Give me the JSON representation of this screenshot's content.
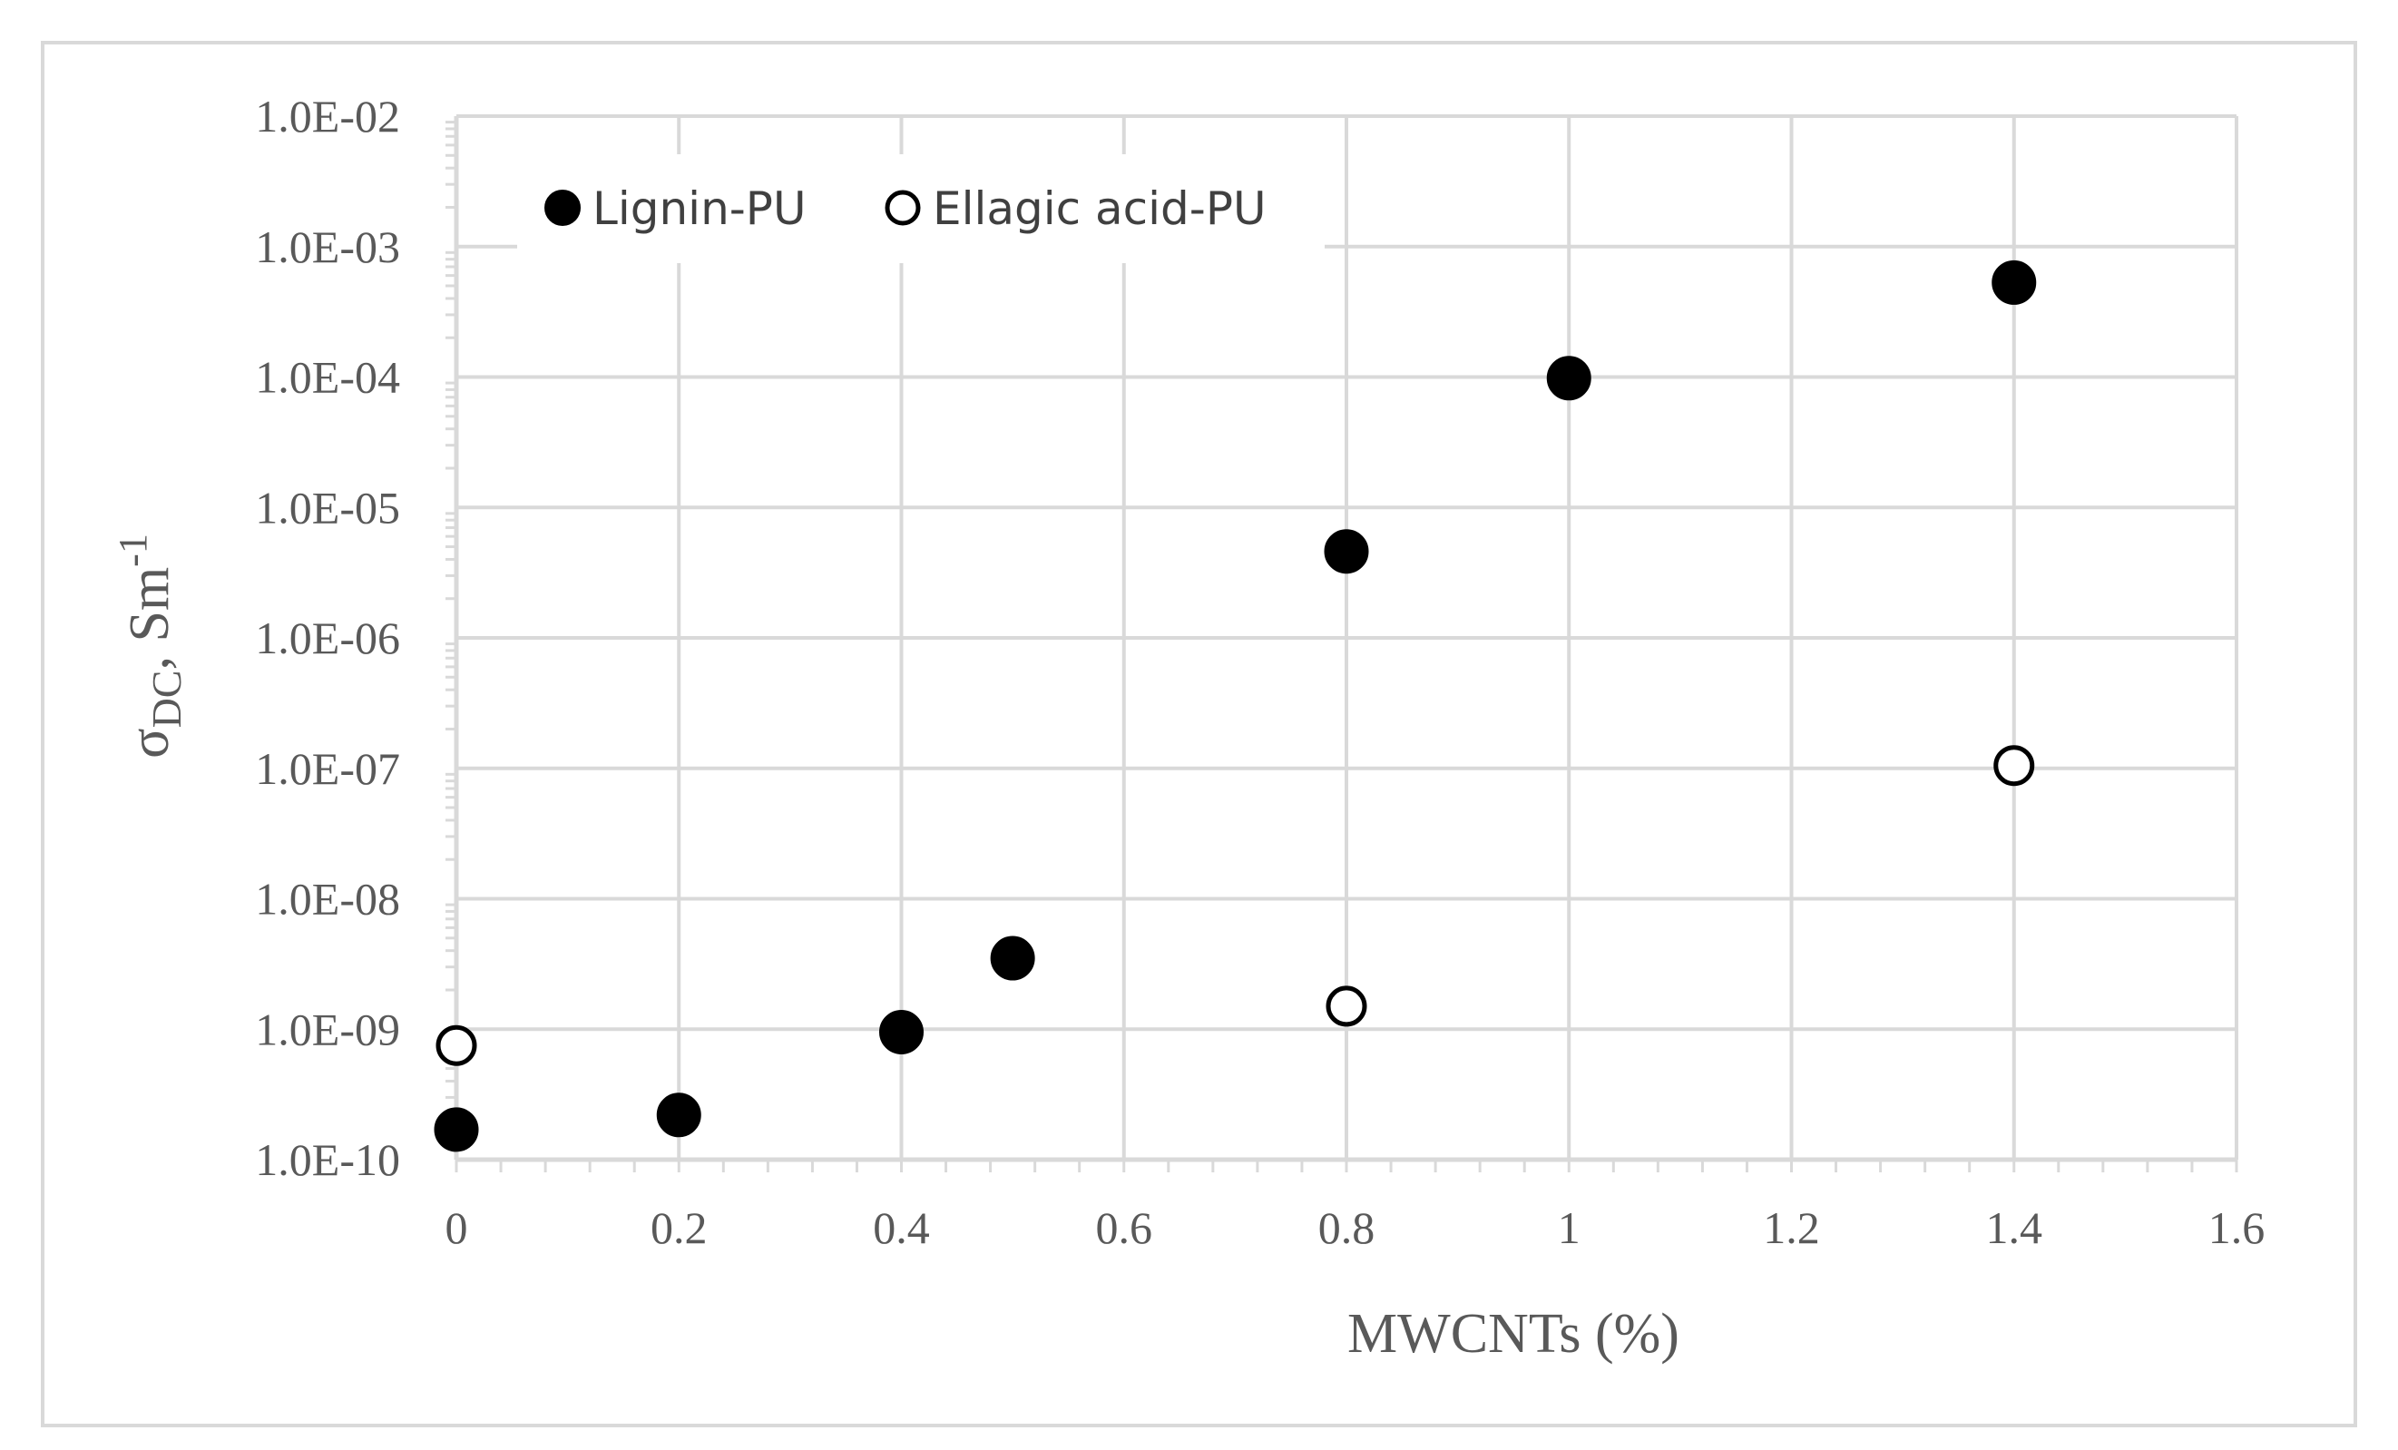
{
  "chart_data": {
    "type": "scatter",
    "title": "",
    "xlabel": "MWCNTs (%)",
    "ylabel": {
      "symbol": "σ",
      "subscript": "DC",
      "unit": ", Sm",
      "exponent": "-1"
    },
    "xlim": [
      0,
      1.6
    ],
    "ylim": [
      1e-10,
      0.01
    ],
    "yscale": "log",
    "grid": true,
    "legend_position": "top-left",
    "x_ticks": [
      {
        "value": 0,
        "label": "0"
      },
      {
        "value": 0.2,
        "label": "0.2"
      },
      {
        "value": 0.4,
        "label": "0.4"
      },
      {
        "value": 0.6,
        "label": "0.6"
      },
      {
        "value": 0.8,
        "label": "0.8"
      },
      {
        "value": 1.0,
        "label": "1"
      },
      {
        "value": 1.2,
        "label": "1.2"
      },
      {
        "value": 1.4,
        "label": "1.4"
      },
      {
        "value": 1.6,
        "label": "1.6"
      }
    ],
    "y_ticks": [
      {
        "value": 0.01,
        "label": "1.0E-02"
      },
      {
        "value": 0.001,
        "label": "1.0E-03"
      },
      {
        "value": 0.0001,
        "label": "1.0E-04"
      },
      {
        "value": 1e-05,
        "label": "1.0E-05"
      },
      {
        "value": 1e-06,
        "label": "1.0E-06"
      },
      {
        "value": 1e-07,
        "label": "1.0E-07"
      },
      {
        "value": 1e-08,
        "label": "1.0E-08"
      },
      {
        "value": 1e-09,
        "label": "1.0E-09"
      },
      {
        "value": 1e-10,
        "label": "1.0E-10"
      }
    ],
    "series": [
      {
        "name": "Lignin-PU",
        "marker": "filled-circle",
        "color": "#000000",
        "points": [
          {
            "x": 0,
            "y": 1.7e-10
          },
          {
            "x": 0.2,
            "y": 2.2e-10
          },
          {
            "x": 0.4,
            "y": 9.5e-10
          },
          {
            "x": 0.5,
            "y": 3.5e-09
          },
          {
            "x": 0.8,
            "y": 4.6e-06
          },
          {
            "x": 1.0,
            "y": 9.8e-05
          },
          {
            "x": 1.4,
            "y": 0.00053
          }
        ]
      },
      {
        "name": "Ellagic acid-PU",
        "marker": "open-circle",
        "color": "#000000",
        "points": [
          {
            "x": 0,
            "y": 7.5e-10
          },
          {
            "x": 0.8,
            "y": 1.5e-09
          },
          {
            "x": 1.4,
            "y": 1.05e-07
          }
        ]
      }
    ],
    "colors": {
      "grid": "#d9d9d9",
      "text": "#595959",
      "frame": "#d9d9d9"
    }
  }
}
